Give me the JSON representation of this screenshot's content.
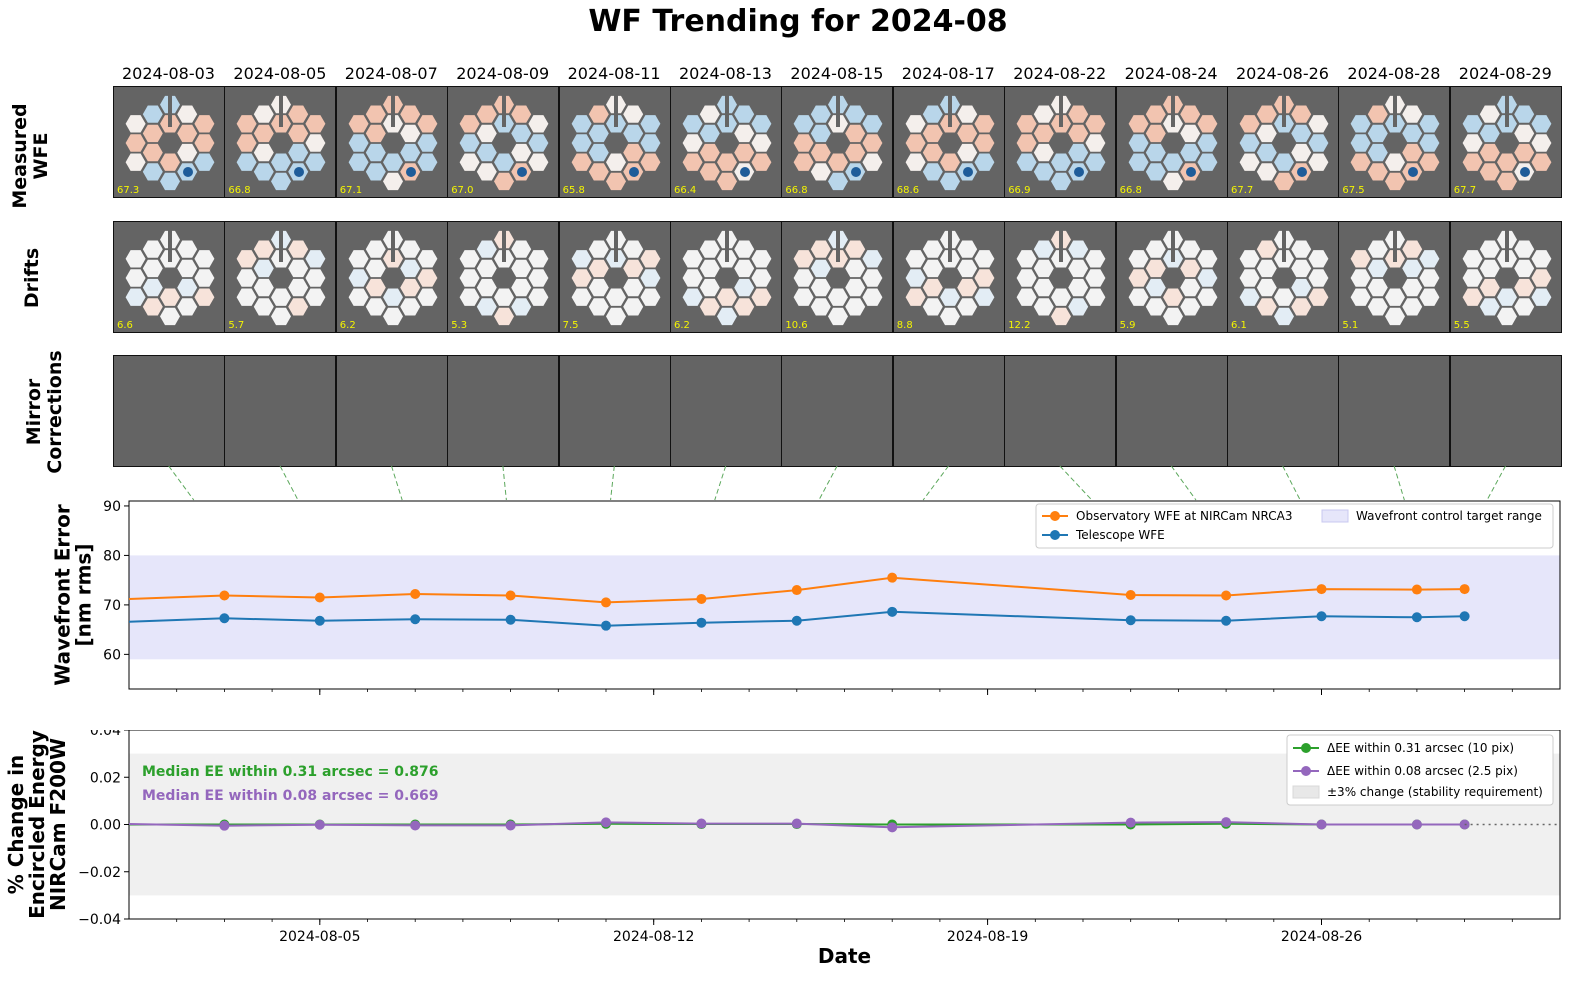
{
  "title": "WF Trending for 2024-08",
  "row_labels": {
    "measured": "Measured\nWFE",
    "drifts": "Drifts",
    "corrections": "Mirror\nCorrections"
  },
  "colors": {
    "observatory": "#ff7f0e",
    "telescope": "#1f77b4",
    "ee_031": "#2ca02c",
    "ee_008": "#9467bd",
    "target_band": "#e6e6fa",
    "stability_band": "#f0f0f0",
    "panel_bg": "#646464",
    "cell_value": "#f5f500",
    "connector": "#5ca85c"
  },
  "thumbnails": [
    {
      "date": "2024-08-03",
      "measured_wfe": "67.3",
      "drift": "6.6"
    },
    {
      "date": "2024-08-05",
      "measured_wfe": "66.8",
      "drift": "5.7"
    },
    {
      "date": "2024-08-07",
      "measured_wfe": "67.1",
      "drift": "6.2"
    },
    {
      "date": "2024-08-09",
      "measured_wfe": "67.0",
      "drift": "5.3"
    },
    {
      "date": "2024-08-11",
      "measured_wfe": "65.8",
      "drift": "7.5"
    },
    {
      "date": "2024-08-13",
      "measured_wfe": "66.4",
      "drift": "6.2"
    },
    {
      "date": "2024-08-15",
      "measured_wfe": "66.8",
      "drift": "10.6"
    },
    {
      "date": "2024-08-17",
      "measured_wfe": "68.6",
      "drift": "8.8"
    },
    {
      "date": "2024-08-22",
      "measured_wfe": "66.9",
      "drift": "12.2"
    },
    {
      "date": "2024-08-24",
      "measured_wfe": "66.8",
      "drift": "5.9"
    },
    {
      "date": "2024-08-26",
      "measured_wfe": "67.7",
      "drift": "6.1"
    },
    {
      "date": "2024-08-28",
      "measured_wfe": "67.5",
      "drift": "5.1"
    },
    {
      "date": "2024-08-29",
      "measured_wfe": "67.7",
      "drift": "5.5"
    }
  ],
  "chart_data": [
    {
      "type": "line",
      "ylabel": "Wavefront Error\n[nm rms]",
      "ylim": [
        53,
        91
      ],
      "yticks": [
        "60",
        "70",
        "80",
        "90"
      ],
      "xlim": [
        "2024-08-01",
        "2024-08-31"
      ],
      "grid": false,
      "legend_position": "top-right",
      "x": [
        "2024-08-01",
        "2024-08-03",
        "2024-08-05",
        "2024-08-07",
        "2024-08-09",
        "2024-08-11",
        "2024-08-13",
        "2024-08-15",
        "2024-08-17",
        "2024-08-22",
        "2024-08-24",
        "2024-08-26",
        "2024-08-28",
        "2024-08-29"
      ],
      "series": [
        {
          "name": "Observatory WFE at NIRCam NRCA3",
          "values": [
            71.2,
            71.9,
            71.5,
            72.2,
            71.9,
            70.5,
            71.2,
            73.0,
            75.5,
            72.0,
            71.9,
            73.2,
            73.1,
            73.2
          ]
        },
        {
          "name": "Telescope WFE",
          "values": [
            66.6,
            67.3,
            66.8,
            67.1,
            67.0,
            65.8,
            66.4,
            66.8,
            68.6,
            66.9,
            66.8,
            67.7,
            67.5,
            67.7
          ]
        }
      ],
      "bands": [
        {
          "name": "Wavefront control target range",
          "from": 59,
          "to": 80
        }
      ]
    },
    {
      "type": "line",
      "ylabel": "% Change in\nEncircled Energy\nNIRCam F200W",
      "xlabel": "Date",
      "ylim": [
        -0.04,
        0.04
      ],
      "yticks": [
        "−0.04",
        "−0.02",
        "0.00",
        "0.02",
        "0.04"
      ],
      "xlim": [
        "2024-08-01",
        "2024-08-31"
      ],
      "xticks": [
        "2024-08-05",
        "2024-08-12",
        "2024-08-19",
        "2024-08-26"
      ],
      "grid": false,
      "legend_position": "top-right",
      "x": [
        "2024-08-01",
        "2024-08-03",
        "2024-08-05",
        "2024-08-07",
        "2024-08-09",
        "2024-08-11",
        "2024-08-13",
        "2024-08-15",
        "2024-08-17",
        "2024-08-22",
        "2024-08-24",
        "2024-08-26",
        "2024-08-28",
        "2024-08-29"
      ],
      "series": [
        {
          "name": "ΔEE within 0.31 arcsec (10 pix)",
          "values": [
            0.0,
            0.0,
            0.0,
            0.0,
            0.0,
            0.0003,
            0.0002,
            0.0002,
            0.0,
            0.0,
            0.0003,
            0.0,
            0.0,
            0.0
          ]
        },
        {
          "name": "ΔEE within 0.08 arcsec (2.5 pix)",
          "values": [
            0.0002,
            -0.0005,
            -0.0001,
            -0.0004,
            -0.0004,
            0.0009,
            0.0004,
            0.0004,
            -0.0012,
            0.0008,
            0.001,
            0.0,
            0.0,
            0.0
          ]
        }
      ],
      "bands": [
        {
          "name": "±3% change (stability requirement)",
          "from": -0.03,
          "to": 0.03
        }
      ],
      "annotations": [
        "Median EE within 0.31 arcsec = 0.876",
        "Median EE within 0.08 arcsec = 0.669"
      ]
    }
  ]
}
